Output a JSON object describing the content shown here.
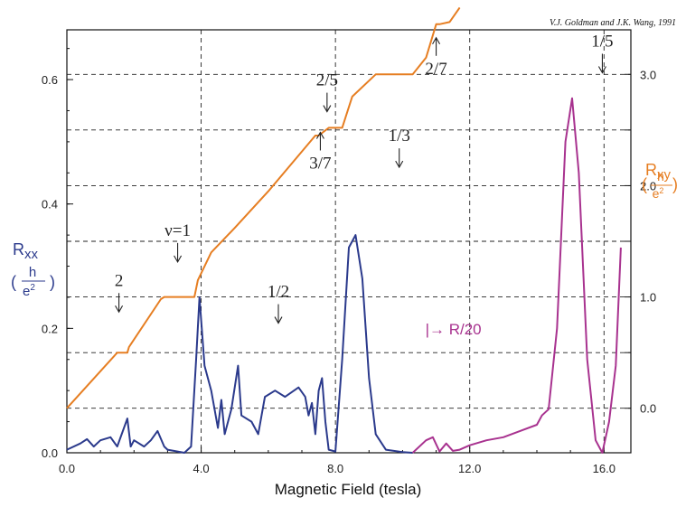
{
  "citation": "V.J. Goldman and J.K. Wang, 1991",
  "chart_data": {
    "type": "line",
    "xlabel": "Magnetic Field (tesla)",
    "xlim": [
      0,
      16.8
    ],
    "x_ticks": [
      0,
      4,
      8,
      12,
      16
    ],
    "x_tick_labels": [
      "0.0",
      "4.0",
      "8.0",
      "12.0",
      "16.0"
    ],
    "left_axis": {
      "label_main": "R",
      "label_sub": "xx",
      "unit_num": "h",
      "unit_den": "e",
      "unit_exp": "2",
      "ylim": [
        0,
        0.68
      ],
      "ticks": [
        0,
        0.2,
        0.4,
        0.6
      ],
      "tick_labels": [
        "0.0",
        "0.2",
        "0.4",
        "0.6"
      ],
      "color": "#2b3a8c"
    },
    "right_axis": {
      "label_main": "R",
      "label_sub": "xy",
      "unit_num": "h",
      "unit_den": "e",
      "unit_exp": "2",
      "ylim": [
        -0.4,
        3.4
      ],
      "ticks": [
        0,
        1,
        2,
        3
      ],
      "tick_labels": [
        "0.0",
        "1.0",
        "2.0",
        "3.0"
      ],
      "color": "#e67e22"
    },
    "series": [
      {
        "name": "Rxy",
        "axis": "right",
        "color": "#e67e22",
        "x": [
          0.0,
          1.5,
          1.55,
          1.8,
          1.85,
          2.8,
          2.9,
          3.8,
          3.9,
          4.3,
          5.0,
          6.0,
          7.4,
          7.5,
          7.8,
          7.9,
          8.2,
          8.5,
          9.2,
          9.3,
          10.0,
          10.3,
          10.7,
          11.0,
          11.1,
          11.4,
          11.7
        ],
        "y": [
          0.0,
          0.5,
          0.5,
          0.5,
          0.55,
          0.98,
          1.0,
          1.0,
          1.15,
          1.4,
          1.62,
          1.95,
          2.45,
          2.45,
          2.52,
          2.52,
          2.52,
          2.8,
          3.0,
          3.0,
          3.0,
          3.0,
          3.15,
          3.45,
          3.45,
          3.47,
          3.6
        ]
      },
      {
        "name": "Rxx",
        "axis": "left",
        "color": "#2b3a8c",
        "x": [
          0.0,
          0.4,
          0.6,
          0.8,
          1.0,
          1.3,
          1.5,
          1.8,
          1.9,
          2.0,
          2.3,
          2.5,
          2.7,
          2.9,
          3.0,
          3.5,
          3.7,
          3.85,
          3.95,
          4.1,
          4.3,
          4.5,
          4.6,
          4.7,
          4.9,
          5.1,
          5.2,
          5.5,
          5.7,
          5.9,
          6.2,
          6.5,
          6.9,
          7.1,
          7.2,
          7.3,
          7.4,
          7.5,
          7.6,
          7.7,
          7.8,
          8.0,
          8.2,
          8.4,
          8.6,
          8.8,
          9.0,
          9.2,
          9.5,
          10.0,
          10.3
        ],
        "y": [
          0.005,
          0.015,
          0.022,
          0.01,
          0.02,
          0.025,
          0.01,
          0.055,
          0.01,
          0.02,
          0.01,
          0.02,
          0.035,
          0.01,
          0.005,
          0.0,
          0.01,
          0.15,
          0.25,
          0.14,
          0.1,
          0.04,
          0.085,
          0.03,
          0.07,
          0.14,
          0.06,
          0.05,
          0.03,
          0.09,
          0.1,
          0.09,
          0.105,
          0.09,
          0.06,
          0.08,
          0.03,
          0.1,
          0.12,
          0.05,
          0.005,
          0.002,
          0.15,
          0.33,
          0.35,
          0.28,
          0.12,
          0.03,
          0.005,
          0.001,
          0.0
        ]
      },
      {
        "name": "R/20",
        "axis": "left",
        "color": "#a8328f",
        "x": [
          10.3,
          10.7,
          10.9,
          11.1,
          11.3,
          11.5,
          11.7,
          12.0,
          12.5,
          13.0,
          13.5,
          14.0,
          14.15,
          14.35,
          14.6,
          14.85,
          15.05,
          15.25,
          15.5,
          15.75,
          15.95,
          16.15,
          16.35,
          16.5
        ],
        "y": [
          0.0,
          0.02,
          0.025,
          0.002,
          0.015,
          0.003,
          0.005,
          0.012,
          0.02,
          0.025,
          0.035,
          0.045,
          0.06,
          0.07,
          0.2,
          0.5,
          0.57,
          0.45,
          0.15,
          0.02,
          0.0,
          0.05,
          0.14,
          0.33
        ]
      }
    ],
    "annotations": [
      {
        "text": "2",
        "x": 1.55,
        "y_right": 1.1,
        "arrow": "down"
      },
      {
        "text": "ν=1",
        "x": 3.3,
        "y_right": 1.55,
        "arrow": "down"
      },
      {
        "text": "1/2",
        "x": 6.3,
        "y_right": 1.0,
        "arrow": "down"
      },
      {
        "text": "3/7",
        "x": 7.55,
        "y_right": 2.3,
        "arrow": "up"
      },
      {
        "text": "2/5",
        "x": 7.75,
        "y_right": 2.9,
        "arrow": "down"
      },
      {
        "text": "1/3",
        "x": 9.9,
        "y_right": 2.4,
        "arrow": "down"
      },
      {
        "text": "2/7",
        "x": 11.0,
        "y_right": 3.15,
        "arrow": "up"
      },
      {
        "text": "1/5",
        "x": 15.95,
        "y_right": 3.25,
        "arrow": "down"
      },
      {
        "text": "|→ R/20",
        "x": 11.0,
        "y_left": 0.19,
        "arrow": "none"
      }
    ],
    "grid": true
  }
}
